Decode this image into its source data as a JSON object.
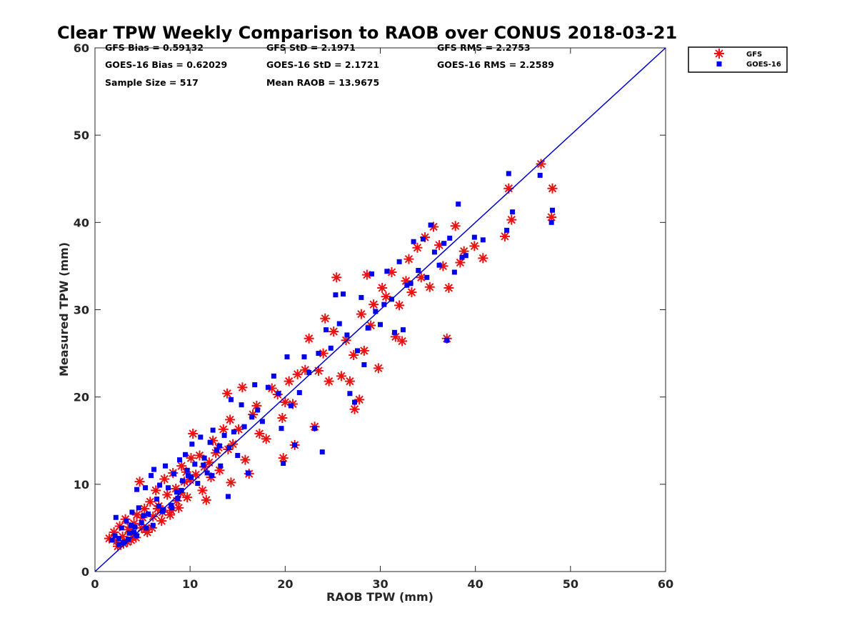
{
  "chart_data": {
    "type": "scatter",
    "title": "Clear TPW Weekly Comparison to RAOB over CONUS 2018-03-21",
    "xlabel": "RAOB TPW (mm)",
    "ylabel": "Measured TPW (mm)",
    "xlim": [
      0,
      60
    ],
    "ylim": [
      0,
      60
    ],
    "xticks": [
      "0",
      "10",
      "20",
      "30",
      "40",
      "50",
      "60"
    ],
    "yticks": [
      "0",
      "10",
      "20",
      "30",
      "40",
      "50",
      "60"
    ],
    "grid": false,
    "legend_position": "top-right",
    "stats": [
      "GFS Bias = 0.59132",
      "GFS StD = 2.1971",
      "GFS RMS = 2.2753",
      "GOES-16 Bias = 0.62029",
      "GOES-16 StD = 2.1721",
      "GOES-16 RMS = 2.2589",
      "Sample Size = 517",
      "Mean RAOB = 13.9675"
    ],
    "reference_line": {
      "x": [
        0,
        60
      ],
      "y": [
        0,
        60
      ],
      "color": "#0000cc"
    },
    "series": [
      {
        "name": "GFS",
        "marker": "asterisk",
        "color": "#ee1111",
        "points": [
          [
            1.5,
            3.8
          ],
          [
            2.0,
            4.5
          ],
          [
            2.3,
            3.5
          ],
          [
            2.6,
            5.2
          ],
          [
            2.9,
            4.0
          ],
          [
            3.2,
            6.0
          ],
          [
            3.5,
            4.8
          ],
          [
            3.8,
            3.6
          ],
          [
            4.1,
            5.5
          ],
          [
            4.4,
            6.5
          ],
          [
            4.7,
            10.3
          ],
          [
            4.9,
            5.0
          ],
          [
            5.2,
            7.2
          ],
          [
            5.5,
            4.5
          ],
          [
            5.8,
            8.0
          ],
          [
            6.1,
            6.3
          ],
          [
            6.4,
            9.3
          ],
          [
            6.7,
            7.5
          ],
          [
            7.0,
            5.8
          ],
          [
            7.3,
            10.6
          ],
          [
            7.6,
            8.8
          ],
          [
            7.9,
            6.5
          ],
          [
            8.2,
            11.3
          ],
          [
            8.5,
            9.5
          ],
          [
            8.8,
            7.3
          ],
          [
            9.1,
            12.1
          ],
          [
            9.4,
            10.3
          ],
          [
            9.7,
            8.5
          ],
          [
            10.1,
            13.0
          ],
          [
            10.3,
            15.8
          ],
          [
            10.6,
            11.1
          ],
          [
            11.0,
            13.3
          ],
          [
            11.3,
            9.3
          ],
          [
            11.7,
            8.2
          ],
          [
            12.0,
            12.5
          ],
          [
            12.4,
            15.0
          ],
          [
            12.7,
            13.6
          ],
          [
            13.1,
            11.6
          ],
          [
            13.5,
            16.3
          ],
          [
            13.9,
            20.4
          ],
          [
            14.2,
            17.4
          ],
          [
            14.5,
            14.6
          ],
          [
            14.3,
            10.2
          ],
          [
            15.1,
            16.3
          ],
          [
            15.5,
            21.1
          ],
          [
            15.8,
            12.8
          ],
          [
            16.2,
            11.2
          ],
          [
            16.6,
            18.0
          ],
          [
            17.0,
            19.0
          ],
          [
            17.3,
            15.8
          ],
          [
            18.0,
            15.2
          ],
          [
            18.6,
            21.0
          ],
          [
            19.2,
            20.3
          ],
          [
            19.7,
            17.6
          ],
          [
            20.0,
            19.4
          ],
          [
            20.4,
            21.8
          ],
          [
            19.8,
            13.0
          ],
          [
            20.8,
            19.2
          ],
          [
            21.3,
            22.6
          ],
          [
            21.0,
            14.5
          ],
          [
            22.1,
            23.1
          ],
          [
            22.5,
            26.7
          ],
          [
            23.1,
            16.6
          ],
          [
            23.5,
            23.0
          ],
          [
            24.0,
            25.0
          ],
          [
            24.2,
            29.0
          ],
          [
            24.6,
            21.8
          ],
          [
            25.1,
            27.5
          ],
          [
            25.4,
            33.7
          ],
          [
            25.9,
            22.4
          ],
          [
            26.4,
            26.5
          ],
          [
            26.8,
            21.8
          ],
          [
            27.2,
            24.8
          ],
          [
            27.3,
            18.6
          ],
          [
            27.8,
            19.7
          ],
          [
            28.0,
            29.5
          ],
          [
            28.3,
            25.3
          ],
          [
            28.6,
            34.0
          ],
          [
            29.0,
            28.2
          ],
          [
            29.3,
            30.6
          ],
          [
            29.8,
            23.3
          ],
          [
            30.2,
            32.5
          ],
          [
            30.6,
            31.5
          ],
          [
            31.2,
            34.3
          ],
          [
            31.6,
            26.9
          ],
          [
            32.0,
            30.5
          ],
          [
            32.3,
            26.4
          ],
          [
            32.7,
            33.3
          ],
          [
            33.0,
            35.8
          ],
          [
            33.3,
            32.0
          ],
          [
            33.9,
            37.1
          ],
          [
            34.3,
            33.7
          ],
          [
            34.7,
            38.3
          ],
          [
            35.2,
            32.6
          ],
          [
            35.6,
            39.5
          ],
          [
            36.2,
            37.4
          ],
          [
            36.6,
            35.0
          ],
          [
            37.0,
            26.7
          ],
          [
            37.2,
            32.5
          ],
          [
            37.9,
            39.6
          ],
          [
            38.4,
            35.4
          ],
          [
            38.8,
            36.7
          ],
          [
            39.9,
            37.3
          ],
          [
            40.8,
            35.9
          ],
          [
            43.1,
            38.4
          ],
          [
            43.5,
            43.9
          ],
          [
            43.8,
            40.3
          ],
          [
            46.9,
            46.7
          ],
          [
            48.0,
            40.6
          ],
          [
            48.1,
            43.9
          ],
          [
            3.0,
            3.2
          ],
          [
            3.4,
            3.4
          ],
          [
            4.0,
            4.2
          ],
          [
            5.0,
            6.2
          ],
          [
            6.0,
            5.0
          ],
          [
            7.1,
            6.8
          ],
          [
            8.0,
            7.0
          ],
          [
            9.0,
            9.0
          ],
          [
            10.0,
            10.5
          ],
          [
            11.5,
            12.0
          ],
          [
            12.2,
            10.8
          ],
          [
            13.0,
            14.2
          ],
          [
            14.0,
            14.0
          ],
          [
            5.3,
            4.8
          ],
          [
            6.6,
            7.2
          ],
          [
            8.6,
            8.1
          ],
          [
            2.4,
            2.9
          ],
          [
            3.7,
            5.1
          ],
          [
            4.3,
            3.9
          ],
          [
            9.6,
            11.4
          ]
        ]
      },
      {
        "name": "GOES-16",
        "marker": "square",
        "color": "#0000ee",
        "points": [
          [
            1.8,
            3.6
          ],
          [
            2.1,
            4.1
          ],
          [
            2.2,
            6.2
          ],
          [
            2.5,
            3.8
          ],
          [
            2.8,
            5.0
          ],
          [
            3.0,
            3.3
          ],
          [
            3.3,
            5.8
          ],
          [
            3.6,
            4.4
          ],
          [
            3.9,
            6.8
          ],
          [
            4.2,
            5.1
          ],
          [
            4.4,
            9.4
          ],
          [
            4.6,
            7.3
          ],
          [
            4.9,
            5.6
          ],
          [
            5.3,
            9.6
          ],
          [
            5.6,
            6.6
          ],
          [
            5.9,
            11.0
          ],
          [
            6.2,
            11.7
          ],
          [
            6.5,
            8.3
          ],
          [
            6.8,
            9.9
          ],
          [
            7.1,
            6.9
          ],
          [
            7.4,
            12.1
          ],
          [
            7.7,
            9.6
          ],
          [
            8.0,
            7.6
          ],
          [
            8.3,
            11.2
          ],
          [
            8.6,
            9.1
          ],
          [
            8.9,
            12.8
          ],
          [
            9.2,
            10.4
          ],
          [
            9.5,
            13.4
          ],
          [
            9.8,
            11.0
          ],
          [
            10.2,
            14.6
          ],
          [
            10.5,
            12.3
          ],
          [
            10.8,
            10.1
          ],
          [
            11.1,
            15.4
          ],
          [
            11.5,
            13.0
          ],
          [
            11.8,
            11.3
          ],
          [
            12.1,
            14.8
          ],
          [
            12.4,
            16.2
          ],
          [
            12.8,
            13.9
          ],
          [
            13.2,
            12.1
          ],
          [
            13.6,
            15.6
          ],
          [
            14.0,
            8.6
          ],
          [
            14.3,
            19.7
          ],
          [
            14.6,
            16.0
          ],
          [
            15.0,
            13.3
          ],
          [
            15.4,
            19.1
          ],
          [
            15.7,
            16.6
          ],
          [
            16.1,
            11.3
          ],
          [
            16.5,
            17.7
          ],
          [
            16.8,
            21.4
          ],
          [
            17.1,
            18.5
          ],
          [
            17.6,
            17.2
          ],
          [
            18.2,
            21.1
          ],
          [
            18.8,
            22.4
          ],
          [
            19.3,
            20.4
          ],
          [
            19.6,
            16.4
          ],
          [
            19.8,
            12.4
          ],
          [
            20.2,
            24.6
          ],
          [
            20.6,
            19.0
          ],
          [
            21.0,
            14.5
          ],
          [
            21.5,
            20.5
          ],
          [
            22.0,
            24.6
          ],
          [
            22.5,
            22.8
          ],
          [
            23.1,
            16.4
          ],
          [
            23.5,
            25.0
          ],
          [
            23.9,
            13.7
          ],
          [
            24.3,
            27.7
          ],
          [
            24.8,
            25.6
          ],
          [
            25.3,
            31.7
          ],
          [
            25.7,
            28.4
          ],
          [
            26.1,
            31.8
          ],
          [
            26.5,
            27.1
          ],
          [
            26.8,
            20.4
          ],
          [
            27.3,
            19.4
          ],
          [
            27.6,
            25.3
          ],
          [
            28.0,
            31.4
          ],
          [
            28.3,
            23.7
          ],
          [
            28.7,
            27.9
          ],
          [
            29.1,
            34.1
          ],
          [
            29.5,
            29.8
          ],
          [
            30.0,
            28.3
          ],
          [
            30.4,
            30.6
          ],
          [
            30.7,
            34.4
          ],
          [
            31.2,
            31.2
          ],
          [
            31.5,
            27.4
          ],
          [
            32.0,
            35.5
          ],
          [
            32.4,
            27.7
          ],
          [
            32.8,
            32.8
          ],
          [
            33.2,
            33.0
          ],
          [
            33.5,
            37.8
          ],
          [
            34.0,
            34.5
          ],
          [
            34.5,
            38.1
          ],
          [
            34.9,
            33.7
          ],
          [
            35.3,
            39.7
          ],
          [
            35.7,
            36.6
          ],
          [
            36.2,
            35.1
          ],
          [
            36.7,
            37.6
          ],
          [
            37.0,
            26.5
          ],
          [
            37.3,
            38.2
          ],
          [
            37.8,
            34.3
          ],
          [
            38.2,
            42.1
          ],
          [
            38.6,
            36.0
          ],
          [
            39.0,
            36.2
          ],
          [
            39.9,
            38.3
          ],
          [
            40.8,
            38.0
          ],
          [
            43.3,
            39.1
          ],
          [
            43.5,
            45.6
          ],
          [
            43.9,
            41.2
          ],
          [
            46.8,
            45.4
          ],
          [
            48.0,
            40.0
          ],
          [
            48.1,
            41.4
          ],
          [
            3.1,
            3.4
          ],
          [
            3.5,
            3.7
          ],
          [
            4.1,
            4.5
          ],
          [
            5.1,
            6.4
          ],
          [
            6.1,
            5.3
          ],
          [
            7.2,
            7.1
          ],
          [
            8.1,
            7.3
          ],
          [
            9.1,
            9.3
          ],
          [
            10.1,
            10.8
          ],
          [
            11.4,
            12.2
          ],
          [
            12.3,
            11.0
          ],
          [
            13.1,
            14.4
          ],
          [
            14.1,
            14.2
          ],
          [
            5.4,
            5.0
          ],
          [
            6.7,
            7.5
          ],
          [
            8.7,
            8.4
          ],
          [
            2.5,
            3.1
          ],
          [
            3.8,
            5.3
          ],
          [
            4.4,
            4.1
          ],
          [
            9.7,
            11.6
          ]
        ]
      }
    ]
  }
}
